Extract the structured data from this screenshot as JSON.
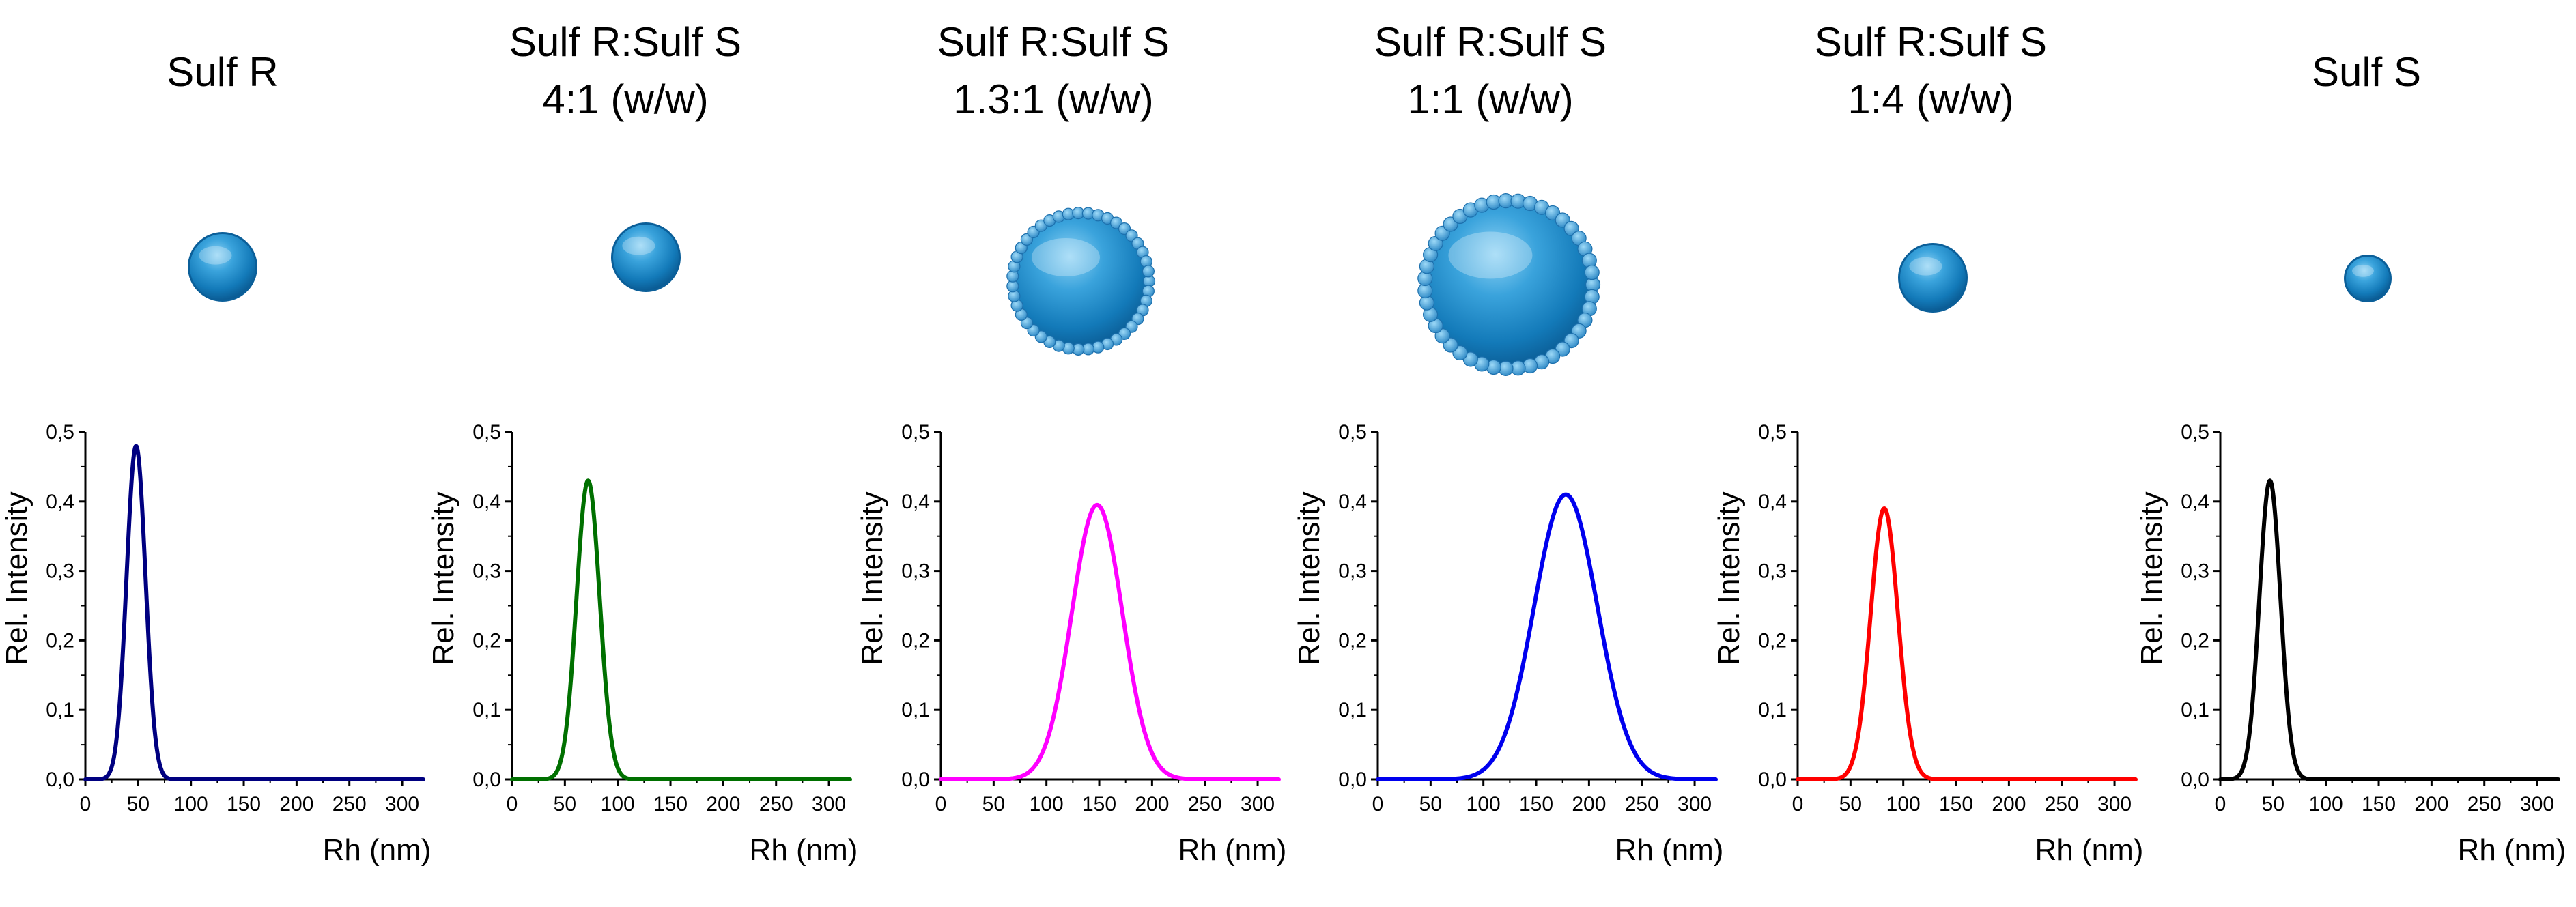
{
  "chart_data": [
    {
      "type": "line",
      "title": "Sulf R",
      "xlabel": "Rh (nm)",
      "ylabel": "Rel. Intensity",
      "xlim": [
        0,
        320
      ],
      "ylim": [
        0,
        0.5
      ],
      "xticks": [
        0,
        50,
        100,
        150,
        200,
        250,
        300
      ],
      "yticks": [
        "0,0",
        "0,1",
        "0,2",
        "0,3",
        "0,4",
        "0,5"
      ],
      "grid": false,
      "particle_size": "small",
      "series": [
        {
          "color": "#000080",
          "peak_x": 48,
          "peak_y": 0.48,
          "width": 9,
          "points": [
            [
              0,
              0
            ],
            [
              30,
              0
            ],
            [
              35,
              0.01
            ],
            [
              40,
              0.1
            ],
            [
              44,
              0.35
            ],
            [
              48,
              0.48
            ],
            [
              52,
              0.43
            ],
            [
              57,
              0.25
            ],
            [
              62,
              0.1
            ],
            [
              67,
              0.03
            ],
            [
              72,
              0.005
            ],
            [
              80,
              0
            ],
            [
              320,
              0
            ]
          ]
        }
      ]
    },
    {
      "type": "line",
      "title": "Sulf R:Sulf S\n4:1 (w/w)",
      "xlabel": "Rh (nm)",
      "ylabel": "Rel. Intensity",
      "xlim": [
        0,
        320
      ],
      "ylim": [
        0,
        0.5
      ],
      "xticks": [
        0,
        50,
        100,
        150,
        200,
        250,
        300
      ],
      "yticks": [
        "0,0",
        "0,1",
        "0,2",
        "0,3",
        "0,4",
        "0,5"
      ],
      "grid": false,
      "particle_size": "small",
      "series": [
        {
          "color": "#007000",
          "peak_x": 72,
          "peak_y": 0.43,
          "width": 11,
          "points": [
            [
              0,
              0
            ],
            [
              45,
              0
            ],
            [
              50,
              0.01
            ],
            [
              55,
              0.05
            ],
            [
              60,
              0.15
            ],
            [
              65,
              0.3
            ],
            [
              72,
              0.43
            ],
            [
              78,
              0.39
            ],
            [
              84,
              0.25
            ],
            [
              90,
              0.1
            ],
            [
              95,
              0.03
            ],
            [
              100,
              0.005
            ],
            [
              110,
              0
            ],
            [
              320,
              0
            ]
          ]
        }
      ]
    },
    {
      "type": "line",
      "title": "Sulf R:Sulf S\n1.3:1 (w/w)",
      "xlabel": "Rh (nm)",
      "ylabel": "Rel. Intensity",
      "xlim": [
        0,
        320
      ],
      "ylim": [
        0,
        0.5
      ],
      "xticks": [
        0,
        50,
        100,
        150,
        200,
        250,
        300
      ],
      "yticks": [
        "0,0",
        "0,1",
        "0,2",
        "0,3",
        "0,4",
        "0,5"
      ],
      "grid": false,
      "particle_size": "large",
      "series": [
        {
          "color": "#ff00ff",
          "peak_x": 148,
          "peak_y": 0.395,
          "width": 24,
          "points": [
            [
              0,
              0
            ],
            [
              95,
              0
            ],
            [
              105,
              0.01
            ],
            [
              115,
              0.06
            ],
            [
              125,
              0.18
            ],
            [
              135,
              0.32
            ],
            [
              148,
              0.395
            ],
            [
              160,
              0.33
            ],
            [
              172,
              0.19
            ],
            [
              185,
              0.07
            ],
            [
              198,
              0.015
            ],
            [
              210,
              0.002
            ],
            [
              225,
              0
            ],
            [
              320,
              0
            ]
          ]
        }
      ]
    },
    {
      "type": "line",
      "title": "Sulf R:Sulf S\n1:1 (w/w)",
      "xlabel": "Rh (nm)",
      "ylabel": "Rel. Intensity",
      "xlim": [
        0,
        320
      ],
      "ylim": [
        0,
        0.5
      ],
      "xticks": [
        0,
        50,
        100,
        150,
        200,
        250,
        300
      ],
      "yticks": [
        "0,0",
        "0,1",
        "0,2",
        "0,3",
        "0,4",
        "0,5"
      ],
      "grid": false,
      "particle_size": "largest",
      "series": [
        {
          "color": "#0000ee",
          "peak_x": 178,
          "peak_y": 0.41,
          "width": 30,
          "points": [
            [
              0,
              0
            ],
            [
              115,
              0
            ],
            [
              125,
              0.01
            ],
            [
              137,
              0.07
            ],
            [
              150,
              0.2
            ],
            [
              163,
              0.34
            ],
            [
              178,
              0.41
            ],
            [
              193,
              0.36
            ],
            [
              208,
              0.22
            ],
            [
              223,
              0.08
            ],
            [
              238,
              0.02
            ],
            [
              252,
              0.003
            ],
            [
              270,
              0
            ],
            [
              320,
              0
            ]
          ]
        }
      ]
    },
    {
      "type": "line",
      "title": "Sulf R:Sulf S\n1:4 (w/w)",
      "xlabel": "Rh (nm)",
      "ylabel": "Rel. Intensity",
      "xlim": [
        0,
        320
      ],
      "ylim": [
        0,
        0.5
      ],
      "xticks": [
        0,
        50,
        100,
        150,
        200,
        250,
        300
      ],
      "yticks": [
        "0,0",
        "0,1",
        "0,2",
        "0,3",
        "0,4",
        "0,5"
      ],
      "grid": false,
      "particle_size": "small",
      "series": [
        {
          "color": "#ff0000",
          "peak_x": 82,
          "peak_y": 0.39,
          "width": 13,
          "points": [
            [
              0,
              0
            ],
            [
              50,
              0
            ],
            [
              56,
              0.01
            ],
            [
              62,
              0.06
            ],
            [
              68,
              0.18
            ],
            [
              74,
              0.32
            ],
            [
              82,
              0.39
            ],
            [
              89,
              0.33
            ],
            [
              96,
              0.18
            ],
            [
              103,
              0.06
            ],
            [
              110,
              0.015
            ],
            [
              118,
              0.002
            ],
            [
              130,
              0
            ],
            [
              320,
              0
            ]
          ]
        }
      ]
    },
    {
      "type": "line",
      "title": "Sulf S",
      "xlabel": "Rh (nm)",
      "ylabel": "Rel. Intensity",
      "xlim": [
        0,
        320
      ],
      "ylim": [
        0,
        0.5
      ],
      "xticks": [
        0,
        50,
        100,
        150,
        200,
        250,
        300
      ],
      "yticks": [
        "0,0",
        "0,1",
        "0,2",
        "0,3",
        "0,4",
        "0,5"
      ],
      "grid": false,
      "particle_size": "smallest",
      "series": [
        {
          "color": "#000000",
          "peak_x": 47,
          "peak_y": 0.43,
          "width": 10,
          "points": [
            [
              0,
              0
            ],
            [
              28,
              0
            ],
            [
              33,
              0.01
            ],
            [
              38,
              0.1
            ],
            [
              43,
              0.34
            ],
            [
              47,
              0.43
            ],
            [
              52,
              0.37
            ],
            [
              57,
              0.2
            ],
            [
              63,
              0.08
            ],
            [
              70,
              0.02
            ],
            [
              77,
              0.004
            ],
            [
              85,
              0
            ],
            [
              320,
              0
            ]
          ]
        }
      ]
    }
  ]
}
